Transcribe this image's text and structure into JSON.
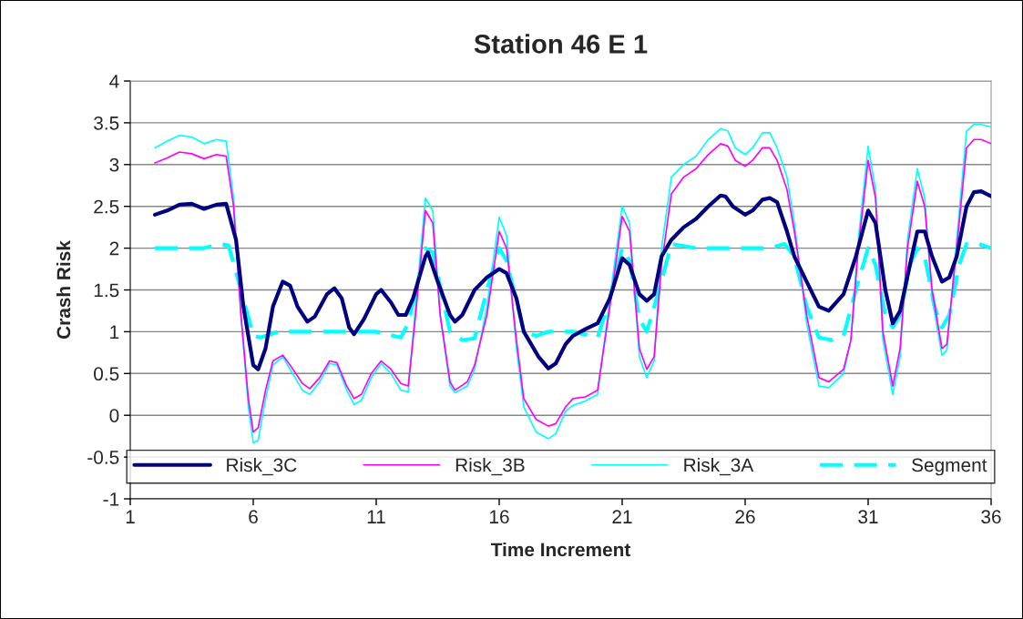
{
  "chart_data": {
    "type": "line",
    "title": "Station 46 E 1",
    "xlabel": "Time Increment",
    "ylabel": "Crash Risk",
    "xlim": [
      1,
      36
    ],
    "xticks": [
      1,
      6,
      11,
      16,
      21,
      26,
      31,
      36
    ],
    "ylim": [
      -1,
      4
    ],
    "yticks": [
      -1,
      -0.5,
      0,
      0.5,
      1,
      1.5,
      2,
      2.5,
      3,
      3.5,
      4
    ],
    "grid": "y",
    "legend": "bottom",
    "marker": "none",
    "series": [
      {
        "name": "Risk_3C",
        "color": "#000080",
        "line_style": "solid",
        "x": [
          2,
          2.5,
          3,
          3.5,
          4,
          4.5,
          4.9,
          5.3,
          5.6,
          6,
          6.2,
          6.5,
          6.8,
          7.2,
          7.5,
          7.8,
          8.2,
          8.5,
          9,
          9.3,
          9.6,
          9.9,
          10.1,
          10.5,
          11,
          11.2,
          11.6,
          11.9,
          12.2,
          12.5,
          13,
          13.1,
          13.5,
          14,
          14.2,
          14.5,
          15,
          15.5,
          16,
          16.3,
          16.7,
          17,
          17.3,
          17.6,
          18,
          18.3,
          18.7,
          19,
          19.5,
          20,
          20.5,
          21,
          21.3,
          21.7,
          22,
          22.3,
          22.6,
          23,
          23.5,
          24,
          24.5,
          25,
          25.2,
          25.5,
          26,
          26.3,
          26.7,
          27,
          27.3,
          27.7,
          28,
          28.5,
          29,
          29.4,
          30,
          30.5,
          31,
          31.3,
          31.7,
          32,
          32.3,
          32.7,
          33,
          33.3,
          33.6,
          34,
          34.3,
          34.6,
          35,
          35.3,
          35.6,
          36
        ],
        "values": [
          2.4,
          2.45,
          2.52,
          2.53,
          2.47,
          2.52,
          2.53,
          2.1,
          1.3,
          0.6,
          0.55,
          0.8,
          1.3,
          1.6,
          1.55,
          1.3,
          1.12,
          1.18,
          1.45,
          1.52,
          1.4,
          1.05,
          0.97,
          1.15,
          1.45,
          1.5,
          1.35,
          1.2,
          1.2,
          1.4,
          1.9,
          1.95,
          1.6,
          1.2,
          1.12,
          1.2,
          1.5,
          1.65,
          1.75,
          1.7,
          1.4,
          1.0,
          0.85,
          0.7,
          0.56,
          0.62,
          0.85,
          0.95,
          1.03,
          1.1,
          1.4,
          1.88,
          1.8,
          1.45,
          1.37,
          1.45,
          1.9,
          2.1,
          2.25,
          2.35,
          2.5,
          2.63,
          2.62,
          2.5,
          2.4,
          2.45,
          2.58,
          2.6,
          2.55,
          2.2,
          1.9,
          1.6,
          1.3,
          1.25,
          1.45,
          1.9,
          2.45,
          2.3,
          1.5,
          1.1,
          1.25,
          1.8,
          2.2,
          2.2,
          1.9,
          1.6,
          1.65,
          1.9,
          2.5,
          2.67,
          2.68,
          2.62
        ]
      },
      {
        "name": "Risk_3B",
        "color": "#ff00ff",
        "line_style": "solid",
        "x": [
          2,
          2.5,
          3,
          3.5,
          4,
          4.5,
          4.9,
          5.2,
          5.5,
          5.8,
          6,
          6.2,
          6.5,
          6.8,
          7.2,
          7.5,
          8,
          8.3,
          8.7,
          9.1,
          9.4,
          9.8,
          10.1,
          10.4,
          10.8,
          11.2,
          11.6,
          12,
          12.3,
          12.6,
          13,
          13.3,
          13.6,
          14,
          14.2,
          14.7,
          15,
          15.5,
          16,
          16.3,
          16.7,
          17,
          17.5,
          18,
          18.3,
          18.7,
          19,
          19.5,
          20,
          20.5,
          21,
          21.3,
          21.7,
          22,
          22.3,
          22.6,
          23,
          23.5,
          24,
          24.5,
          25,
          25.3,
          25.6,
          26,
          26.3,
          26.7,
          27,
          27.3,
          27.7,
          28,
          28.5,
          29,
          29.4,
          30,
          30.3,
          30.6,
          31,
          31.3,
          31.6,
          32,
          32.3,
          32.6,
          33,
          33.3,
          33.6,
          34,
          34.2,
          34.6,
          35,
          35.3,
          35.6,
          36
        ],
        "values": [
          3.02,
          3.08,
          3.15,
          3.13,
          3.07,
          3.12,
          3.1,
          2.5,
          1.2,
          0.2,
          -0.2,
          -0.15,
          0.3,
          0.65,
          0.72,
          0.6,
          0.38,
          0.32,
          0.45,
          0.65,
          0.63,
          0.35,
          0.2,
          0.25,
          0.5,
          0.65,
          0.55,
          0.38,
          0.35,
          1.2,
          2.45,
          2.3,
          1.2,
          0.4,
          0.3,
          0.4,
          0.6,
          1.2,
          2.2,
          2.0,
          0.9,
          0.2,
          -0.05,
          -0.13,
          -0.1,
          0.1,
          0.2,
          0.22,
          0.3,
          1.3,
          2.38,
          2.2,
          0.8,
          0.55,
          0.7,
          1.8,
          2.65,
          2.85,
          2.95,
          3.12,
          3.25,
          3.22,
          3.05,
          2.98,
          3.05,
          3.2,
          3.2,
          3.05,
          2.7,
          2.2,
          1.2,
          0.45,
          0.4,
          0.55,
          0.9,
          2.0,
          3.05,
          2.6,
          1.0,
          0.35,
          0.8,
          2.0,
          2.8,
          2.5,
          1.5,
          0.8,
          0.85,
          2.0,
          3.2,
          3.3,
          3.3,
          3.25
        ]
      },
      {
        "name": "Risk_3A",
        "color": "#00ffff",
        "line_style": "solid",
        "x": [
          2,
          2.5,
          3,
          3.5,
          4,
          4.5,
          4.9,
          5.2,
          5.5,
          5.8,
          6,
          6.2,
          6.5,
          6.8,
          7.2,
          7.5,
          8,
          8.3,
          8.7,
          9.1,
          9.4,
          9.8,
          10.1,
          10.4,
          10.8,
          11.2,
          11.6,
          12,
          12.3,
          12.6,
          13,
          13.3,
          13.6,
          14,
          14.2,
          14.7,
          15,
          15.5,
          16,
          16.3,
          16.7,
          17,
          17.5,
          18,
          18.3,
          18.7,
          19,
          19.5,
          20,
          20.5,
          21,
          21.3,
          21.7,
          22,
          22.3,
          22.6,
          23,
          23.5,
          24,
          24.5,
          25,
          25.3,
          25.6,
          26,
          26.3,
          26.7,
          27,
          27.3,
          27.7,
          28,
          28.5,
          29,
          29.4,
          30,
          30.3,
          30.6,
          31,
          31.3,
          31.6,
          32,
          32.3,
          32.6,
          33,
          33.3,
          33.6,
          34,
          34.2,
          34.6,
          35,
          35.3,
          35.6,
          36
        ],
        "values": [
          3.2,
          3.28,
          3.35,
          3.33,
          3.25,
          3.3,
          3.28,
          2.6,
          1.2,
          0.1,
          -0.33,
          -0.3,
          0.2,
          0.6,
          0.7,
          0.55,
          0.3,
          0.25,
          0.4,
          0.62,
          0.6,
          0.3,
          0.13,
          0.18,
          0.45,
          0.62,
          0.5,
          0.3,
          0.28,
          1.3,
          2.6,
          2.45,
          1.2,
          0.35,
          0.27,
          0.35,
          0.55,
          1.3,
          2.37,
          2.15,
          0.8,
          0.1,
          -0.2,
          -0.28,
          -0.22,
          0.05,
          0.12,
          0.17,
          0.25,
          1.4,
          2.5,
          2.3,
          0.7,
          0.45,
          0.65,
          2.0,
          2.85,
          3.0,
          3.1,
          3.3,
          3.43,
          3.4,
          3.2,
          3.12,
          3.2,
          3.38,
          3.38,
          3.2,
          2.85,
          2.3,
          1.1,
          0.35,
          0.33,
          0.5,
          0.9,
          2.1,
          3.22,
          2.7,
          0.9,
          0.25,
          0.7,
          2.1,
          2.95,
          2.6,
          1.4,
          0.72,
          0.78,
          2.1,
          3.4,
          3.48,
          3.48,
          3.45
        ]
      },
      {
        "name": "Segment",
        "color": "#00ffff",
        "line_style": "dashed",
        "x": [
          2,
          3,
          4,
          4.7,
          5,
          5.5,
          6,
          6.3,
          7,
          8,
          9,
          10,
          11,
          12,
          12.3,
          13,
          13.3,
          14,
          14.5,
          15,
          15.5,
          16,
          16.3,
          17,
          17.5,
          18,
          19,
          20,
          20.5,
          21,
          21.3,
          21.7,
          22,
          22.5,
          23,
          24,
          25,
          26,
          27,
          27.6,
          28,
          28.5,
          29,
          29.5,
          30,
          30.5,
          31,
          31.3,
          31.7,
          32,
          32.3,
          32.7,
          33,
          33.3,
          33.7,
          34,
          34.3,
          34.7,
          35,
          35.5,
          36
        ],
        "values": [
          2,
          2,
          2,
          2.05,
          2.03,
          1.5,
          0.95,
          0.93,
          1.0,
          1.0,
          1.0,
          1.0,
          1.0,
          0.93,
          1.1,
          2.0,
          1.95,
          1.0,
          0.9,
          0.92,
          1.5,
          2.0,
          1.85,
          1.0,
          0.95,
          1.0,
          1.0,
          0.93,
          1.4,
          2.0,
          1.85,
          1.15,
          1.0,
          1.5,
          2.05,
          2.0,
          2.0,
          2.0,
          2.0,
          2.05,
          1.9,
          1.3,
          0.93,
          0.9,
          0.95,
          1.5,
          2.0,
          1.8,
          1.2,
          1.05,
          1.2,
          1.8,
          2.0,
          1.9,
          1.3,
          1.05,
          1.2,
          1.8,
          2.05,
          2.05,
          2.0
        ]
      }
    ]
  }
}
